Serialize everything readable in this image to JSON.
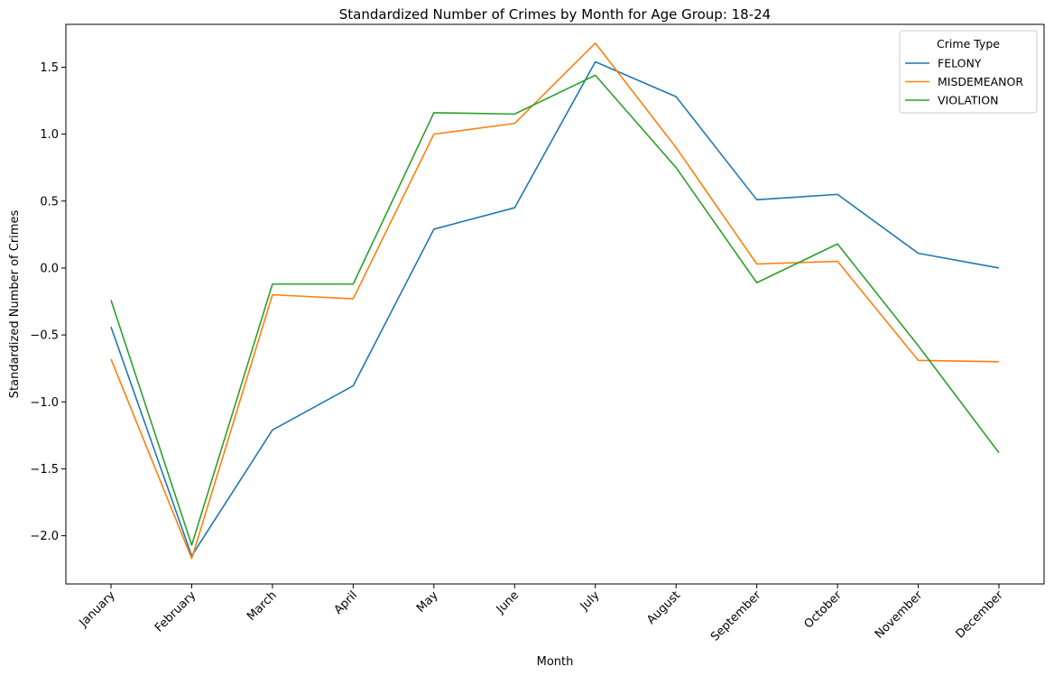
{
  "chart_data": {
    "type": "line",
    "title": "Standardized Number of Crimes by Month for Age Group: 18-24",
    "xlabel": "Month",
    "ylabel": "Standardized Number of Crimes",
    "categories": [
      "January",
      "February",
      "March",
      "April",
      "May",
      "June",
      "July",
      "August",
      "September",
      "October",
      "November",
      "December"
    ],
    "ylim": [
      -2.36,
      1.82
    ],
    "yticks": [
      -2.0,
      -1.5,
      -1.0,
      -0.5,
      0.0,
      0.5,
      1.0,
      1.5
    ],
    "ytick_labels": [
      "−2.0",
      "−1.5",
      "−1.0",
      "−0.5",
      "0.0",
      "0.5",
      "1.0",
      "1.5"
    ],
    "grid": false,
    "legend": {
      "title": "Crime Type",
      "position": "top-right"
    },
    "series": [
      {
        "name": "FELONY",
        "color": "#1f77b4",
        "values": [
          -0.44,
          -2.15,
          -1.21,
          -0.88,
          0.29,
          0.45,
          1.54,
          1.28,
          0.51,
          0.55,
          0.11,
          0.0
        ]
      },
      {
        "name": "MISDEMEANOR",
        "color": "#ff7f0e",
        "values": [
          -0.68,
          -2.17,
          -0.2,
          -0.23,
          1.0,
          1.08,
          1.68,
          0.9,
          0.03,
          0.05,
          -0.69,
          -0.7
        ]
      },
      {
        "name": "VIOLATION",
        "color": "#2ca02c",
        "values": [
          -0.24,
          -2.07,
          -0.12,
          -0.12,
          1.16,
          1.15,
          1.44,
          0.75,
          -0.11,
          0.18,
          -0.58,
          -1.38
        ]
      }
    ]
  }
}
